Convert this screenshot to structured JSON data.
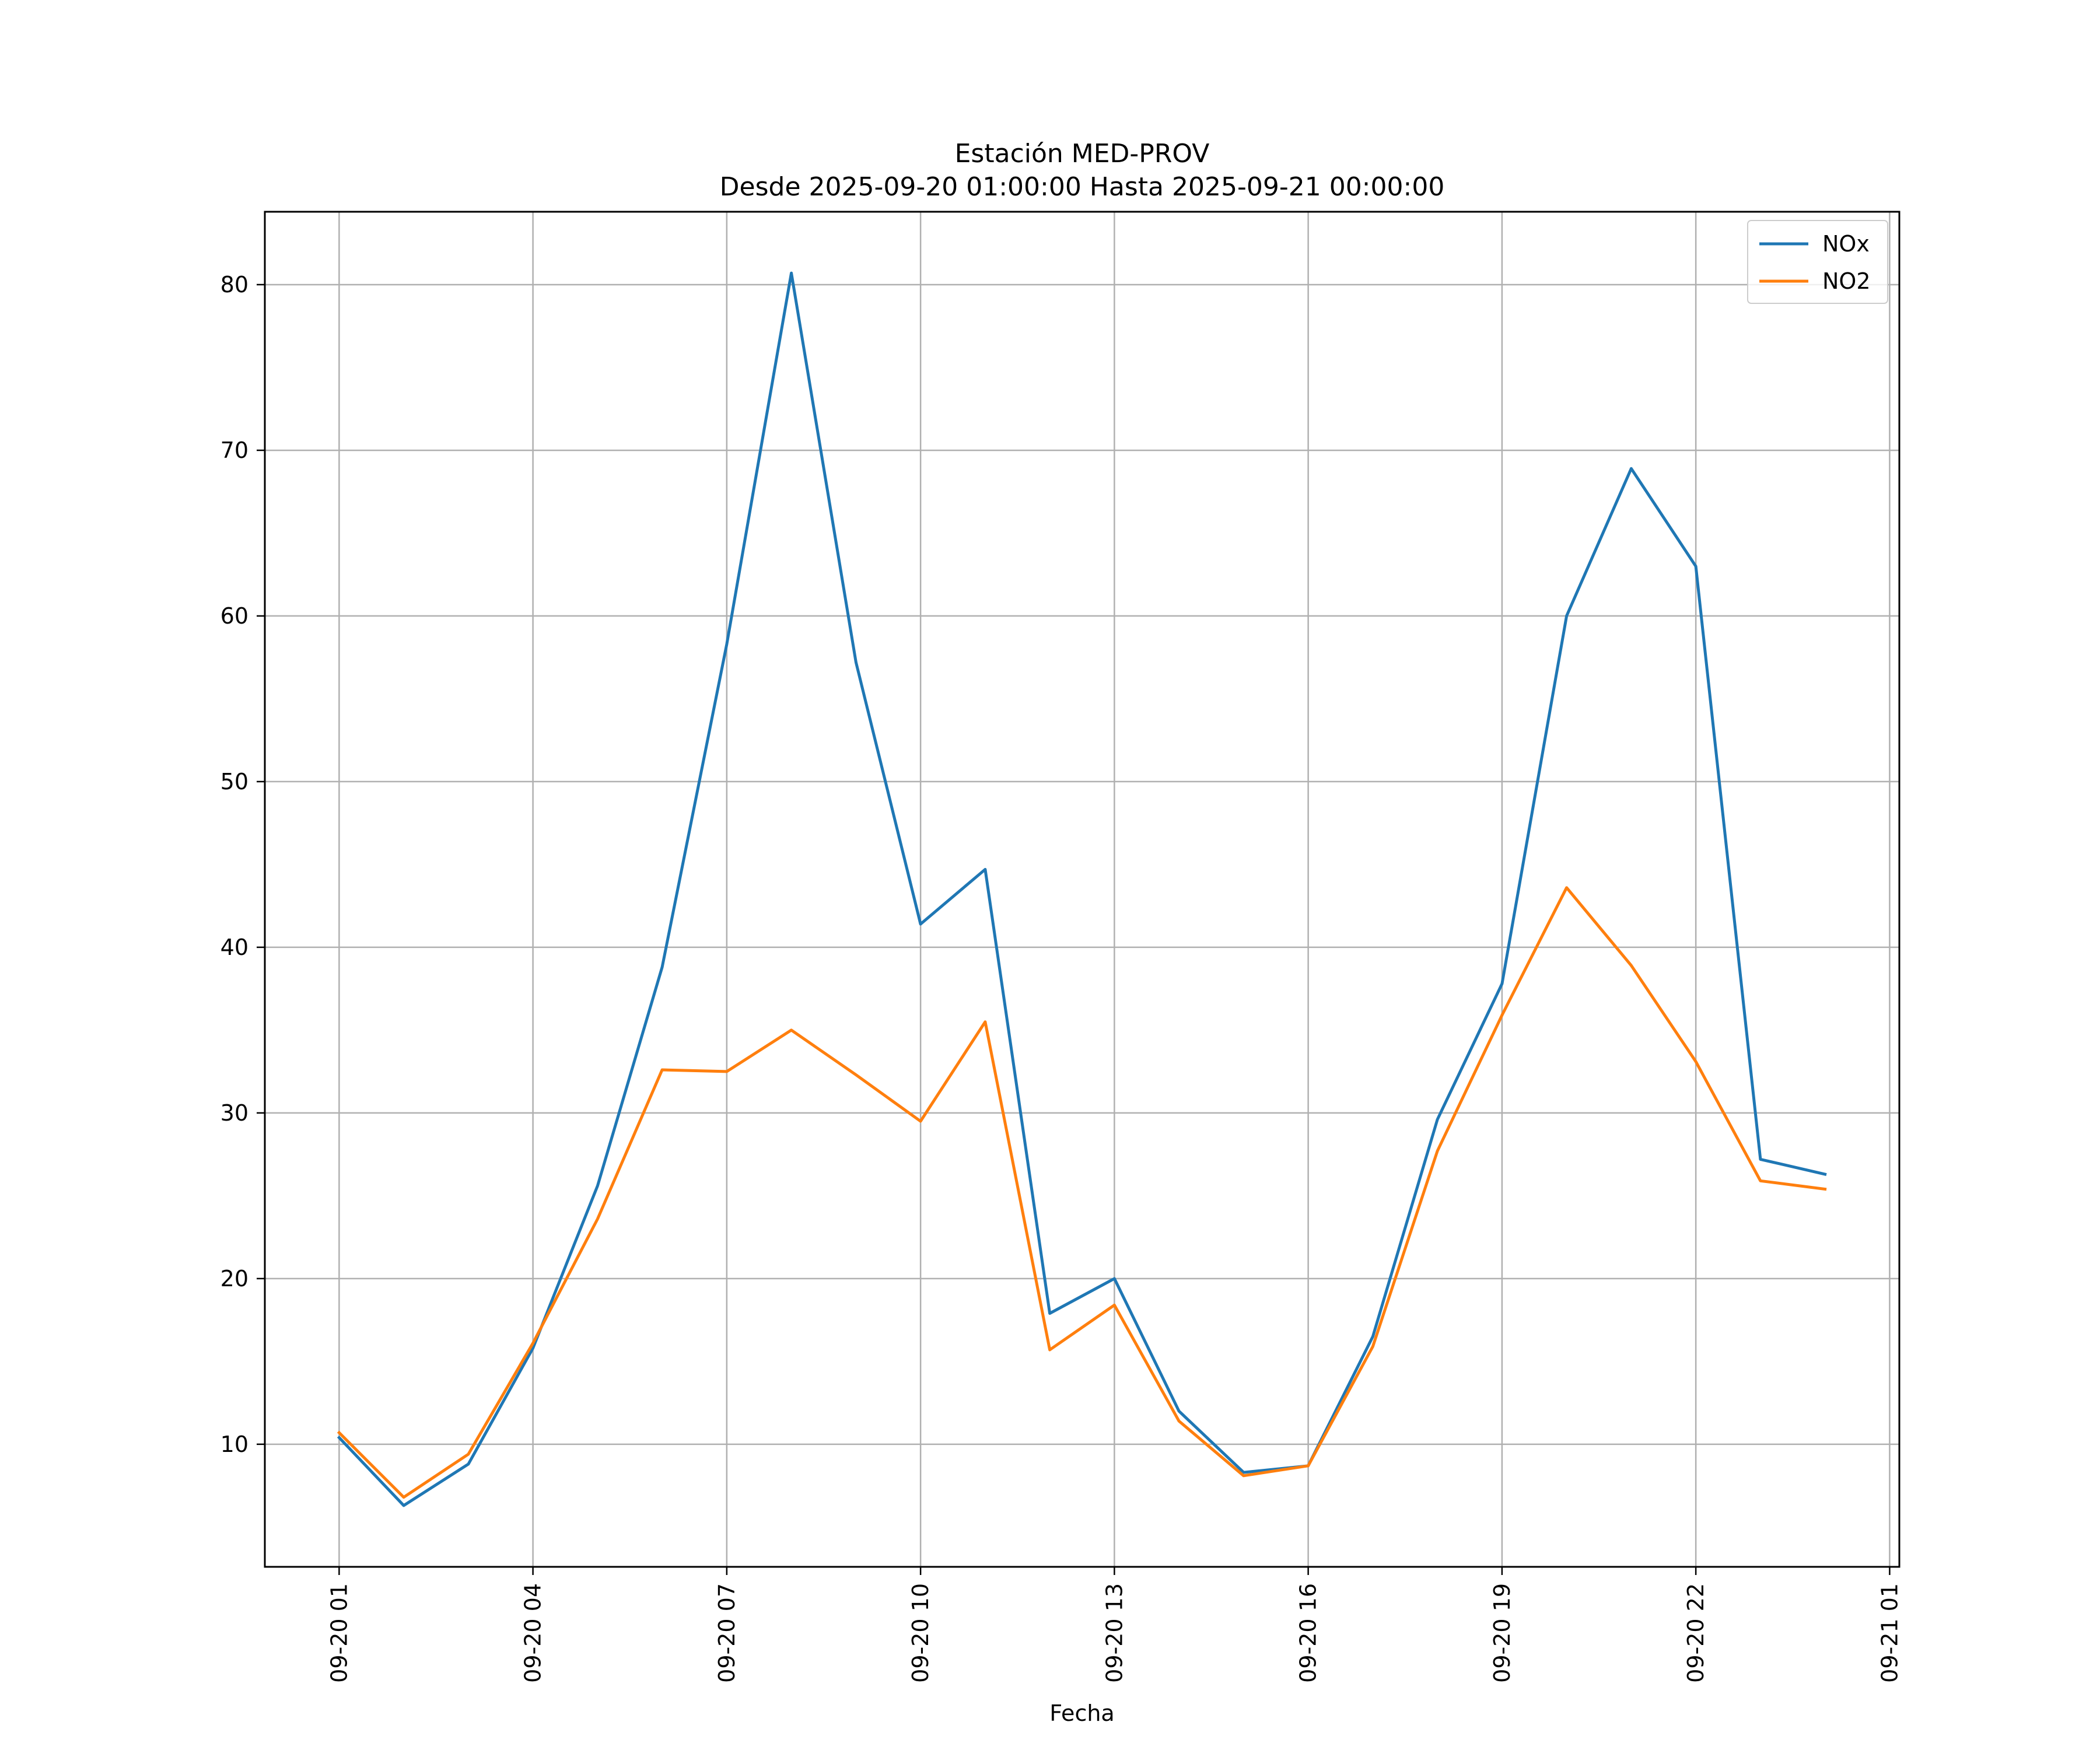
{
  "chart_data": {
    "type": "line",
    "title": "Estación MED-PROV",
    "subtitle": "Desde 2025-09-20 01:00:00 Hasta 2025-09-21 00:00:00",
    "xlabel": "Fecha",
    "ylabel": "",
    "grid": true,
    "legend_position": "top-right",
    "x": [
      "09-20 01",
      "09-20 02",
      "09-20 03",
      "09-20 04",
      "09-20 05",
      "09-20 06",
      "09-20 07",
      "09-20 08",
      "09-20 09",
      "09-20 10",
      "09-20 11",
      "09-20 12",
      "09-20 13",
      "09-20 14",
      "09-20 15",
      "09-20 16",
      "09-20 17",
      "09-20 18",
      "09-20 19",
      "09-20 20",
      "09-20 21",
      "09-20 22",
      "09-20 23",
      "09-21 00"
    ],
    "x_hours": [
      1,
      2,
      3,
      4,
      5,
      6,
      7,
      8,
      9,
      10,
      11,
      12,
      13,
      14,
      15,
      16,
      17,
      18,
      19,
      20,
      21,
      22,
      23,
      24
    ],
    "xlim_hours": [
      -0.15,
      25.15
    ],
    "x_ticks": [
      {
        "hour": 1,
        "label": "09-20 01"
      },
      {
        "hour": 4,
        "label": "09-20 04"
      },
      {
        "hour": 7,
        "label": "09-20 07"
      },
      {
        "hour": 10,
        "label": "09-20 10"
      },
      {
        "hour": 13,
        "label": "09-20 13"
      },
      {
        "hour": 16,
        "label": "09-20 16"
      },
      {
        "hour": 19,
        "label": "09-20 19"
      },
      {
        "hour": 22,
        "label": "09-20 22"
      },
      {
        "hour": 25,
        "label": "09-21 01"
      }
    ],
    "ylim": [
      2.6,
      84.4
    ],
    "y_ticks": [
      10,
      20,
      30,
      40,
      50,
      60,
      70,
      80
    ],
    "series": [
      {
        "name": "NOx",
        "color": "#1f77b4",
        "values": [
          10.4,
          6.3,
          8.8,
          15.8,
          25.6,
          38.8,
          58.3,
          80.7,
          57.2,
          41.4,
          44.7,
          17.9,
          20.0,
          12.0,
          8.3,
          8.7,
          16.5,
          29.6,
          37.8,
          60.0,
          68.9,
          63.0,
          27.2,
          26.3
        ]
      },
      {
        "name": "NO2",
        "color": "#ff7f0e",
        "values": [
          10.7,
          6.8,
          9.4,
          16.1,
          23.6,
          32.6,
          32.5,
          35.0,
          32.3,
          29.5,
          35.5,
          15.7,
          18.4,
          11.4,
          8.1,
          8.7,
          15.9,
          27.7,
          35.9,
          43.6,
          38.9,
          33.1,
          25.9,
          25.4
        ]
      }
    ]
  }
}
